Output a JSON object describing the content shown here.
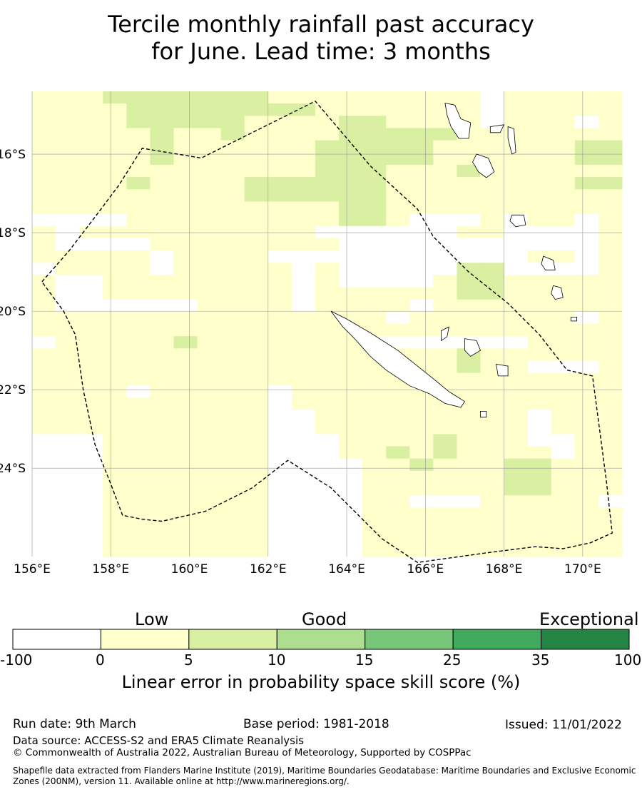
{
  "title": {
    "line1": "Tercile monthly rainfall past accuracy",
    "line2": "for June. Lead time: 3 months"
  },
  "map": {
    "lon_range": [
      156,
      171
    ],
    "lat_range": [
      -26.25,
      -14.4
    ],
    "lon_ticks": [
      "156°E",
      "158°E",
      "160°E",
      "162°E",
      "164°E",
      "166°E",
      "168°E",
      "170°E"
    ],
    "lat_ticks": [
      "16°S",
      "18°S",
      "20°S",
      "22°S",
      "24°S"
    ],
    "grid": true,
    "cell_size_deg": 0.8333,
    "skill_class_colors": [
      "#ffffff",
      "#ffffcc",
      "#d9f0a3",
      "#addd8e",
      "#78c679",
      "#41ab5d",
      "#238443"
    ],
    "skill_class_rows_north_to_south": [
      "1112222222111111111011111",
      "1111222222221111111011111",
      "1111222221111221111011101",
      "1111121121111222221111111",
      "1111121111112222211111122",
      "1111121111112222211111122",
      "1111111111112221112111111",
      "1111211112222221111111122",
      "1111111112222221111111111",
      "1111111111111221111111111",
      "0000111111111221000101101",
      "1011111111110000001100001",
      "1000011111111000000000001",
      "1111101111000000000001101",
      "0111101111101000002200001",
      "1001111111101000012211111",
      "1001111111101111112211111",
      "1000000111101111011111111",
      "1111111111111110111111101",
      "1111111111111111111111111",
      "0111112111111100000001111",
      "1111111111111111112111111",
      "1111111111111111112110001",
      "1111111111111111111111111",
      "1111011111011111111111111",
      "1111111111011111111111111",
      "1111111111001111111110111",
      "1111111111001111111110111",
      "0001111111000111121110011",
      "0001111111000112121111011",
      "0001111111000011211122111",
      "0001111111000011111122111",
      "0001111111000011111122111",
      "0001111111000011000111110",
      "0001111111000011111111111",
      "0001111111000011111111111",
      "0001111111000011111111111",
      "0001111111000011111111111"
    ],
    "boundary_lonlat": [
      [
        156.25,
        -19.25
      ],
      [
        156.95,
        -18.45
      ],
      [
        157.6,
        -17.6
      ],
      [
        158.2,
        -16.8
      ],
      [
        158.8,
        -15.85
      ],
      [
        160.3,
        -16.1
      ],
      [
        163.2,
        -14.65
      ],
      [
        164.6,
        -16.3
      ],
      [
        165.8,
        -17.4
      ],
      [
        166.2,
        -18.1
      ],
      [
        167.1,
        -19.0
      ],
      [
        168.1,
        -19.8
      ],
      [
        168.9,
        -20.6
      ],
      [
        169.6,
        -21.5
      ],
      [
        170.25,
        -21.65
      ],
      [
        170.6,
        -24.3
      ],
      [
        170.75,
        -25.65
      ],
      [
        170.2,
        -25.9
      ],
      [
        169.5,
        -26.05
      ],
      [
        168.8,
        -26.0
      ],
      [
        167.6,
        -26.15
      ],
      [
        165.8,
        -26.4
      ],
      [
        164.9,
        -25.8
      ],
      [
        164.3,
        -25.2
      ],
      [
        163.6,
        -24.5
      ],
      [
        162.5,
        -23.8
      ],
      [
        161.6,
        -24.5
      ],
      [
        160.4,
        -25.1
      ],
      [
        159.3,
        -25.35
      ],
      [
        158.8,
        -25.3
      ],
      [
        158.3,
        -25.2
      ],
      [
        158.0,
        -24.4
      ],
      [
        157.6,
        -23.4
      ],
      [
        157.3,
        -22.0
      ],
      [
        157.1,
        -20.6
      ],
      [
        156.8,
        -20.0
      ],
      [
        156.25,
        -19.25
      ]
    ],
    "islands": [
      {
        "name": "new-caledonia",
        "lonlat": [
          [
            163.6,
            -20.0
          ],
          [
            164.0,
            -20.2
          ],
          [
            164.6,
            -20.55
          ],
          [
            165.3,
            -21.0
          ],
          [
            165.8,
            -21.4
          ],
          [
            166.3,
            -21.8
          ],
          [
            166.6,
            -22.05
          ],
          [
            167.0,
            -22.3
          ],
          [
            166.9,
            -22.45
          ],
          [
            166.5,
            -22.35
          ],
          [
            166.1,
            -22.1
          ],
          [
            165.6,
            -21.9
          ],
          [
            165.0,
            -21.5
          ],
          [
            164.6,
            -21.15
          ],
          [
            164.2,
            -20.7
          ],
          [
            163.9,
            -20.4
          ],
          [
            163.6,
            -20.0
          ]
        ]
      },
      {
        "name": "espiritu-santo",
        "lonlat": [
          [
            166.5,
            -14.7
          ],
          [
            166.75,
            -14.75
          ],
          [
            166.9,
            -15.1
          ],
          [
            167.15,
            -15.2
          ],
          [
            167.1,
            -15.6
          ],
          [
            166.85,
            -15.6
          ],
          [
            166.65,
            -15.3
          ],
          [
            166.55,
            -15.0
          ],
          [
            166.5,
            -14.7
          ]
        ]
      },
      {
        "name": "malakula",
        "lonlat": [
          [
            167.3,
            -16.0
          ],
          [
            167.6,
            -16.1
          ],
          [
            167.75,
            -16.45
          ],
          [
            167.55,
            -16.6
          ],
          [
            167.35,
            -16.45
          ],
          [
            167.2,
            -16.2
          ],
          [
            167.3,
            -16.0
          ]
        ]
      },
      {
        "name": "efate",
        "lonlat": [
          [
            168.2,
            -17.55
          ],
          [
            168.5,
            -17.55
          ],
          [
            168.55,
            -17.8
          ],
          [
            168.3,
            -17.85
          ],
          [
            168.15,
            -17.7
          ],
          [
            168.2,
            -17.55
          ]
        ]
      },
      {
        "name": "maewo-pentecost",
        "lonlat": [
          [
            168.1,
            -15.3
          ],
          [
            168.25,
            -15.35
          ],
          [
            168.3,
            -15.95
          ],
          [
            168.2,
            -16.0
          ],
          [
            168.1,
            -15.6
          ],
          [
            168.1,
            -15.3
          ]
        ]
      },
      {
        "name": "ambae",
        "lonlat": [
          [
            167.65,
            -15.3
          ],
          [
            168.0,
            -15.25
          ],
          [
            167.9,
            -15.45
          ],
          [
            167.65,
            -15.45
          ],
          [
            167.65,
            -15.3
          ]
        ]
      },
      {
        "name": "erromango",
        "lonlat": [
          [
            169.0,
            -18.6
          ],
          [
            169.25,
            -18.7
          ],
          [
            169.3,
            -18.95
          ],
          [
            169.05,
            -18.95
          ],
          [
            168.95,
            -18.8
          ],
          [
            169.0,
            -18.6
          ]
        ]
      },
      {
        "name": "tanna",
        "lonlat": [
          [
            169.25,
            -19.35
          ],
          [
            169.45,
            -19.4
          ],
          [
            169.5,
            -19.65
          ],
          [
            169.3,
            -19.7
          ],
          [
            169.2,
            -19.55
          ],
          [
            169.25,
            -19.35
          ]
        ]
      },
      {
        "name": "lifou",
        "lonlat": [
          [
            167.0,
            -20.7
          ],
          [
            167.3,
            -20.75
          ],
          [
            167.4,
            -21.0
          ],
          [
            167.15,
            -21.15
          ],
          [
            167.0,
            -21.0
          ],
          [
            167.0,
            -20.7
          ]
        ]
      },
      {
        "name": "mare",
        "lonlat": [
          [
            167.8,
            -21.35
          ],
          [
            168.1,
            -21.4
          ],
          [
            168.1,
            -21.65
          ],
          [
            167.85,
            -21.65
          ],
          [
            167.8,
            -21.35
          ]
        ]
      },
      {
        "name": "ouvea",
        "lonlat": [
          [
            166.4,
            -20.5
          ],
          [
            166.6,
            -20.4
          ],
          [
            166.55,
            -20.65
          ],
          [
            166.4,
            -20.75
          ],
          [
            166.4,
            -20.5
          ]
        ]
      },
      {
        "name": "isle-of-pines",
        "lonlat": [
          [
            167.4,
            -22.55
          ],
          [
            167.55,
            -22.55
          ],
          [
            167.55,
            -22.7
          ],
          [
            167.4,
            -22.7
          ],
          [
            167.4,
            -22.55
          ]
        ]
      },
      {
        "name": "aneityum",
        "lonlat": [
          [
            169.7,
            -20.15
          ],
          [
            169.85,
            -20.15
          ],
          [
            169.85,
            -20.25
          ],
          [
            169.7,
            -20.25
          ],
          [
            169.7,
            -20.15
          ]
        ]
      }
    ]
  },
  "colorbar": {
    "category_labels": [
      "Low",
      "Good",
      "Exceptional"
    ],
    "tick_labels": [
      "-100",
      "0",
      "5",
      "10",
      "15",
      "25",
      "35",
      "100"
    ],
    "label": "Linear error in probability space skill score (%)"
  },
  "footer": {
    "run_date": "Run date: 9th March",
    "base_period": "Base period: 1981-2018",
    "issued": "Issued: 11/01/2022",
    "data_source": "Data source: ACCESS-S2 and ERA5 Climate Reanalysis",
    "copyright": "© Commonwealth of Australia 2022, Australian Bureau of Meteorology, Supported by COSPPac",
    "shapefile": "Shapefile data extracted from Flanders Marine Institute (2019), Maritime Boundaries Geodatabase: Maritime Boundaries and Exclusive Economic Zones (200NM), version 11. Available online at http://www.marineregions.org/."
  }
}
